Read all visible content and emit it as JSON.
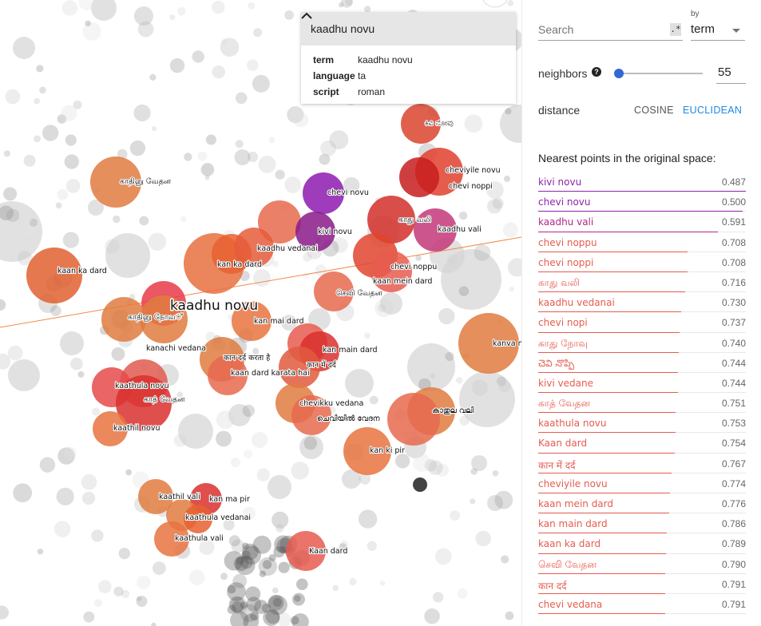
{
  "card": {
    "title": "kaadhu novu",
    "rows": [
      {
        "key": "term",
        "value": "kaadhu novu"
      },
      {
        "key": "language",
        "value": "ta"
      },
      {
        "key": "script",
        "value": "roman"
      }
    ],
    "toggle_icon": "chevron-up-icon"
  },
  "panel": {
    "search_placeholder": "Search",
    "regex_label": ".*",
    "by_label": "by",
    "by_value": "term",
    "neighbors_label": "neighbors",
    "help_icon": "?",
    "neighbors_value": "55",
    "neighbors_fraction": 0.0,
    "distance_label": "distance",
    "cosine_label": "COSINE",
    "euclidean_label": "EUCLIDEAN",
    "nn_title": "Nearest points in the original space:",
    "neighbors": [
      {
        "term": "kivi novu",
        "value": "0.487",
        "color": "#8e24aa"
      },
      {
        "term": "chevi novu",
        "value": "0.500",
        "color": "#8e24aa"
      },
      {
        "term": "kaadhu vali",
        "value": "0.591",
        "color": "#b0288a"
      },
      {
        "term": "chevi noppu",
        "value": "0.708",
        "color": "#e65c4f"
      },
      {
        "term": "chevi noppi",
        "value": "0.708",
        "color": "#e65c4f"
      },
      {
        "term": "காது வலி",
        "value": "0.716",
        "color": "#e65c4f"
      },
      {
        "term": "kaadhu vedanai",
        "value": "0.730",
        "color": "#e65c4f"
      },
      {
        "term": "chevi nopi",
        "value": "0.737",
        "color": "#e65c4f"
      },
      {
        "term": "காது நோவு",
        "value": "0.740",
        "color": "#e65c4f"
      },
      {
        "term": "చెవి నొప్పి",
        "value": "0.744",
        "color": "#e65c4f"
      },
      {
        "term": "kivi vedane",
        "value": "0.744",
        "color": "#e65c4f"
      },
      {
        "term": "காத் வேதன",
        "value": "0.751",
        "color": "#e65c4f"
      },
      {
        "term": "kaathula novu",
        "value": "0.753",
        "color": "#e65c4f"
      },
      {
        "term": "Kaan dard",
        "value": "0.754",
        "color": "#e65c4f"
      },
      {
        "term": "कान में दर्द",
        "value": "0.767",
        "color": "#e65c4f"
      },
      {
        "term": "cheviyile novu",
        "value": "0.774",
        "color": "#e65c4f"
      },
      {
        "term": "kaan mein dard",
        "value": "0.776",
        "color": "#e65c4f"
      },
      {
        "term": "kan main dard",
        "value": "0.786",
        "color": "#e65c4f"
      },
      {
        "term": "kaan ka dard",
        "value": "0.789",
        "color": "#e65c4f"
      },
      {
        "term": "செவி வேதன",
        "value": "0.790",
        "color": "#e65c4f"
      },
      {
        "term": "कान दर्द",
        "value": "0.791",
        "color": "#e65c4f"
      },
      {
        "term": "chevi vedana",
        "value": "0.791",
        "color": "#e65c4f"
      }
    ]
  },
  "projection": {
    "highlighted_label": "kaadhu novu",
    "labels": [
      "ಕಿವಿ ನೋವು",
      "cheviyile novu",
      "chevi noppi",
      "காதினு வேதன",
      "chevi novu",
      "காது வலி",
      "kaadhu vali",
      "kivi novu",
      "kaadhu vedanai",
      "kan ka dard",
      "chevi noppu",
      "kaan mein dard",
      "kaan ka dard",
      "செவி வேதன",
      "காதினு நோவ്",
      "kan mai dard",
      "kanachi vedana",
      "kan main dard",
      "कान दर्द करता है",
      "कान में दर्द",
      "kaan dard karata hai",
      "kaathula novu",
      "காத் வேதன",
      "chevikku vedana",
      "കാതുല വലി",
      "ചെവിയിൽ വേദന",
      "kaathil novu",
      "kanva n",
      "kan ki pir",
      "kaathil vali",
      "kan ma pir",
      "kaathula vedanai",
      "kaathula vali",
      "Kaan dard",
      "ಕಿವಿ ನೋ"
    ]
  }
}
